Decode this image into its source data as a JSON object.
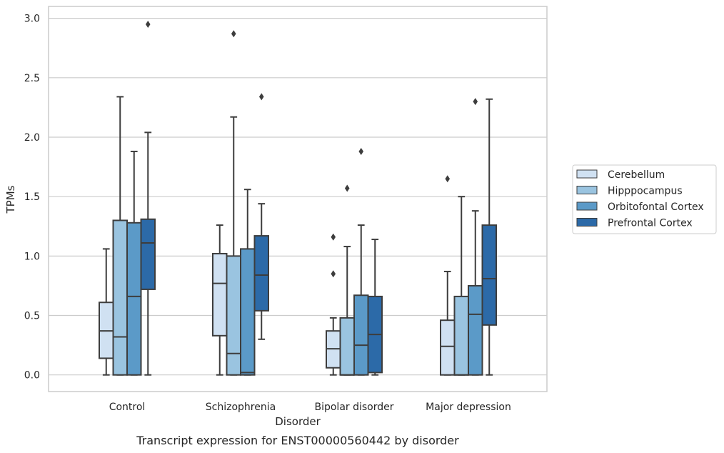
{
  "caption": "Transcript expression for ENST00000560442 by disorder",
  "chart_data": {
    "type": "boxplot",
    "xlabel": "Disorder",
    "ylabel": "TPMs",
    "ylim": [
      -0.14,
      3.1
    ],
    "yticks": [
      0.0,
      0.5,
      1.0,
      1.5,
      2.0,
      2.5,
      3.0
    ],
    "ytick_labels": [
      "0.0",
      "0.5",
      "1.0",
      "1.5",
      "2.0",
      "2.5",
      "3.0"
    ],
    "categories": [
      "Control",
      "Schizophrenia",
      "Bipolar disorder",
      "Major depression"
    ],
    "grid": "horizontal",
    "legend_position": "right",
    "series": [
      {
        "name": "Cerebellum",
        "color": "#d0e1f2",
        "boxes": [
          {
            "whislo": 0.0,
            "q1": 0.14,
            "med": 0.37,
            "q3": 0.61,
            "whishi": 1.06,
            "fliers": []
          },
          {
            "whislo": 0.0,
            "q1": 0.33,
            "med": 0.77,
            "q3": 1.02,
            "whishi": 1.26,
            "fliers": []
          },
          {
            "whislo": 0.0,
            "q1": 0.06,
            "med": 0.22,
            "q3": 0.37,
            "whishi": 0.48,
            "fliers": [
              0.85,
              1.16
            ]
          },
          {
            "whislo": 0.0,
            "q1": 0.0,
            "med": 0.24,
            "q3": 0.46,
            "whishi": 0.87,
            "fliers": [
              1.65
            ]
          }
        ]
      },
      {
        "name": "Hipppocampus",
        "color": "#9ac4e0",
        "boxes": [
          {
            "whislo": 0.0,
            "q1": 0.0,
            "med": 0.32,
            "q3": 1.3,
            "whishi": 2.34,
            "fliers": []
          },
          {
            "whislo": 0.0,
            "q1": 0.0,
            "med": 0.18,
            "q3": 1.0,
            "whishi": 2.17,
            "fliers": [
              2.87
            ]
          },
          {
            "whislo": 0.0,
            "q1": 0.0,
            "med": 0.0,
            "q3": 0.48,
            "whishi": 1.08,
            "fliers": [
              1.57
            ]
          },
          {
            "whislo": 0.0,
            "q1": 0.0,
            "med": 0.0,
            "q3": 0.66,
            "whishi": 1.5,
            "fliers": []
          }
        ]
      },
      {
        "name": "Orbitofontal Cortex",
        "color": "#5b9ac8",
        "boxes": [
          {
            "whislo": 0.0,
            "q1": 0.0,
            "med": 0.66,
            "q3": 1.28,
            "whishi": 1.88,
            "fliers": []
          },
          {
            "whislo": 0.0,
            "q1": 0.0,
            "med": 0.02,
            "q3": 1.06,
            "whishi": 1.56,
            "fliers": []
          },
          {
            "whislo": 0.0,
            "q1": 0.0,
            "med": 0.25,
            "q3": 0.67,
            "whishi": 1.26,
            "fliers": [
              1.88
            ]
          },
          {
            "whislo": 0.0,
            "q1": 0.0,
            "med": 0.51,
            "q3": 0.75,
            "whishi": 1.38,
            "fliers": [
              2.3
            ]
          }
        ]
      },
      {
        "name": "Prefrontal Cortex",
        "color": "#2c6aa8",
        "boxes": [
          {
            "whislo": 0.0,
            "q1": 0.72,
            "med": 1.11,
            "q3": 1.31,
            "whishi": 2.04,
            "fliers": [
              2.95
            ]
          },
          {
            "whislo": 0.3,
            "q1": 0.54,
            "med": 0.84,
            "q3": 1.17,
            "whishi": 1.44,
            "fliers": [
              2.34
            ]
          },
          {
            "whislo": 0.0,
            "q1": 0.02,
            "med": 0.34,
            "q3": 0.66,
            "whishi": 1.14,
            "fliers": []
          },
          {
            "whislo": 0.0,
            "q1": 0.42,
            "med": 0.81,
            "q3": 1.26,
            "whishi": 2.32,
            "fliers": []
          }
        ]
      }
    ]
  },
  "colors": {
    "grid": "#cccccc",
    "frame": "#cccccc",
    "box_edge": "#3d3d3d",
    "text": "#262626"
  }
}
